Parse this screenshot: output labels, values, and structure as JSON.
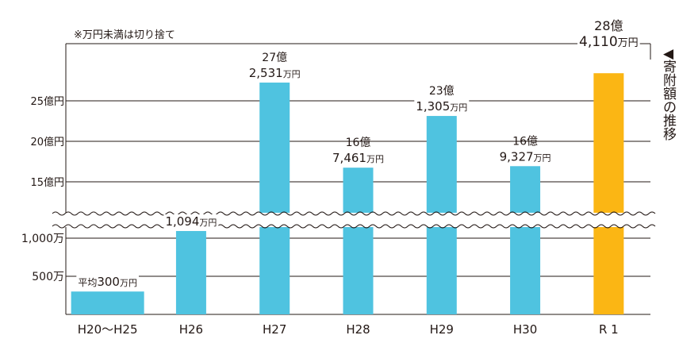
{
  "note": "※万円未満は切り捨て",
  "side_title": "◀寄附額の推移",
  "colors": {
    "bar": "#4fc3e0",
    "highlight": "#fbb614",
    "grid": "#231815"
  },
  "chart_data": {
    "type": "bar",
    "title": "",
    "xlabel": "",
    "ylabel": "",
    "axis_break": true,
    "y_ticks_lower": [
      {
        "label": "500万",
        "value": 5000000
      },
      {
        "label": "1,000万",
        "value": 10000000
      }
    ],
    "y_ticks_upper": [
      {
        "label": "15億円",
        "value": 1500000000
      },
      {
        "label": "20億円",
        "value": 2000000000
      },
      {
        "label": "25億円",
        "value": 2500000000
      }
    ],
    "categories": [
      "H20〜H25",
      "H26",
      "H27",
      "H28",
      "H29",
      "H30",
      "R 1"
    ],
    "values": [
      3000000,
      10940000,
      2725310000,
      1674610000,
      2313050000,
      1693270000,
      2841100000
    ],
    "highlight_index": 6,
    "data_labels": [
      {
        "prefix": "平均",
        "line1": "",
        "num": "300",
        "unit": "万円"
      },
      {
        "prefix": "",
        "line1": "",
        "num": "1,094",
        "unit": "万円"
      },
      {
        "prefix": "",
        "line1": "27億",
        "num": "2,531",
        "unit": "万円"
      },
      {
        "prefix": "",
        "line1": "16億",
        "num": "7,461",
        "unit": "万円"
      },
      {
        "prefix": "",
        "line1": "23億",
        "num": "1,305",
        "unit": "万円"
      },
      {
        "prefix": "",
        "line1": "16億",
        "num": "9,327",
        "unit": "万円"
      },
      {
        "prefix": "",
        "line1": "28億",
        "num": "4,110",
        "unit": "万円"
      }
    ]
  }
}
